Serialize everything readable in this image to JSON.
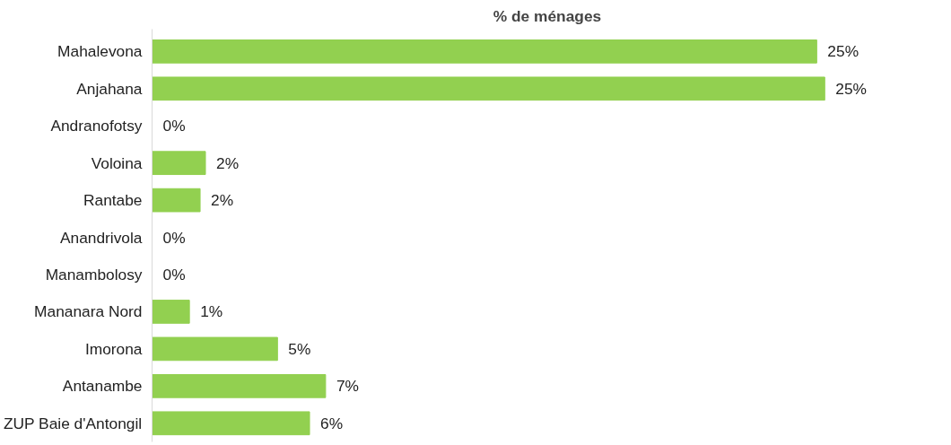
{
  "chart_data": {
    "type": "bar",
    "orientation": "horizontal",
    "title": "% de ménages",
    "categories": [
      "Mahalevona",
      "Anjahana",
      "Andranofotsy",
      "Voloina",
      "Rantabe",
      "Anandrivola",
      "Manambolosy",
      "Mananara Nord",
      "Imorona",
      "Antanambe",
      "ZUP Baie d'Antongil"
    ],
    "values": [
      24.9,
      25.2,
      0,
      2.0,
      1.8,
      0,
      0,
      1.4,
      4.7,
      6.5,
      5.9
    ],
    "value_labels": [
      "25%",
      "25%",
      "0%",
      "2%",
      "2%",
      "0%",
      "0%",
      "1%",
      "5%",
      "7%",
      "6%"
    ],
    "color": "#92d050",
    "grid": false
  }
}
